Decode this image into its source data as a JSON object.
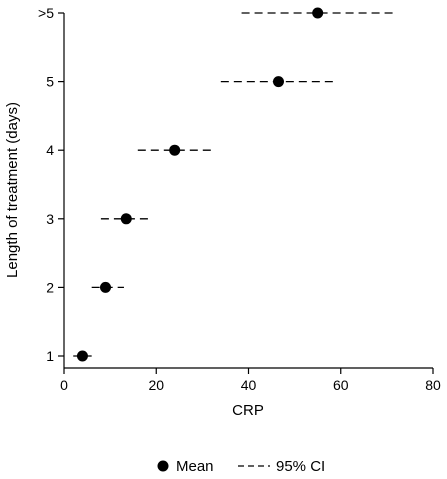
{
  "chart_data": {
    "type": "scatter",
    "xlabel": "CRP",
    "ylabel": "Length of treatment (days)",
    "xlim": [
      0,
      80
    ],
    "xticks": [
      0,
      20,
      40,
      60,
      80
    ],
    "categories": [
      "1",
      "2",
      "3",
      "4",
      "5",
      ">5"
    ],
    "grid": false,
    "legend_position": "bottom",
    "series": [
      {
        "name": "Mean",
        "marker": "filled-circle",
        "values": [
          4,
          9,
          13.5,
          24,
          46.5,
          55
        ]
      },
      {
        "name": "95% CI",
        "style": "dashed",
        "lower": [
          2,
          6,
          8,
          16,
          34,
          38.5
        ],
        "upper": [
          6,
          13,
          19,
          32.5,
          58.5,
          72
        ]
      }
    ],
    "colors": {
      "marker": "#000000",
      "axis": "#000000"
    }
  }
}
